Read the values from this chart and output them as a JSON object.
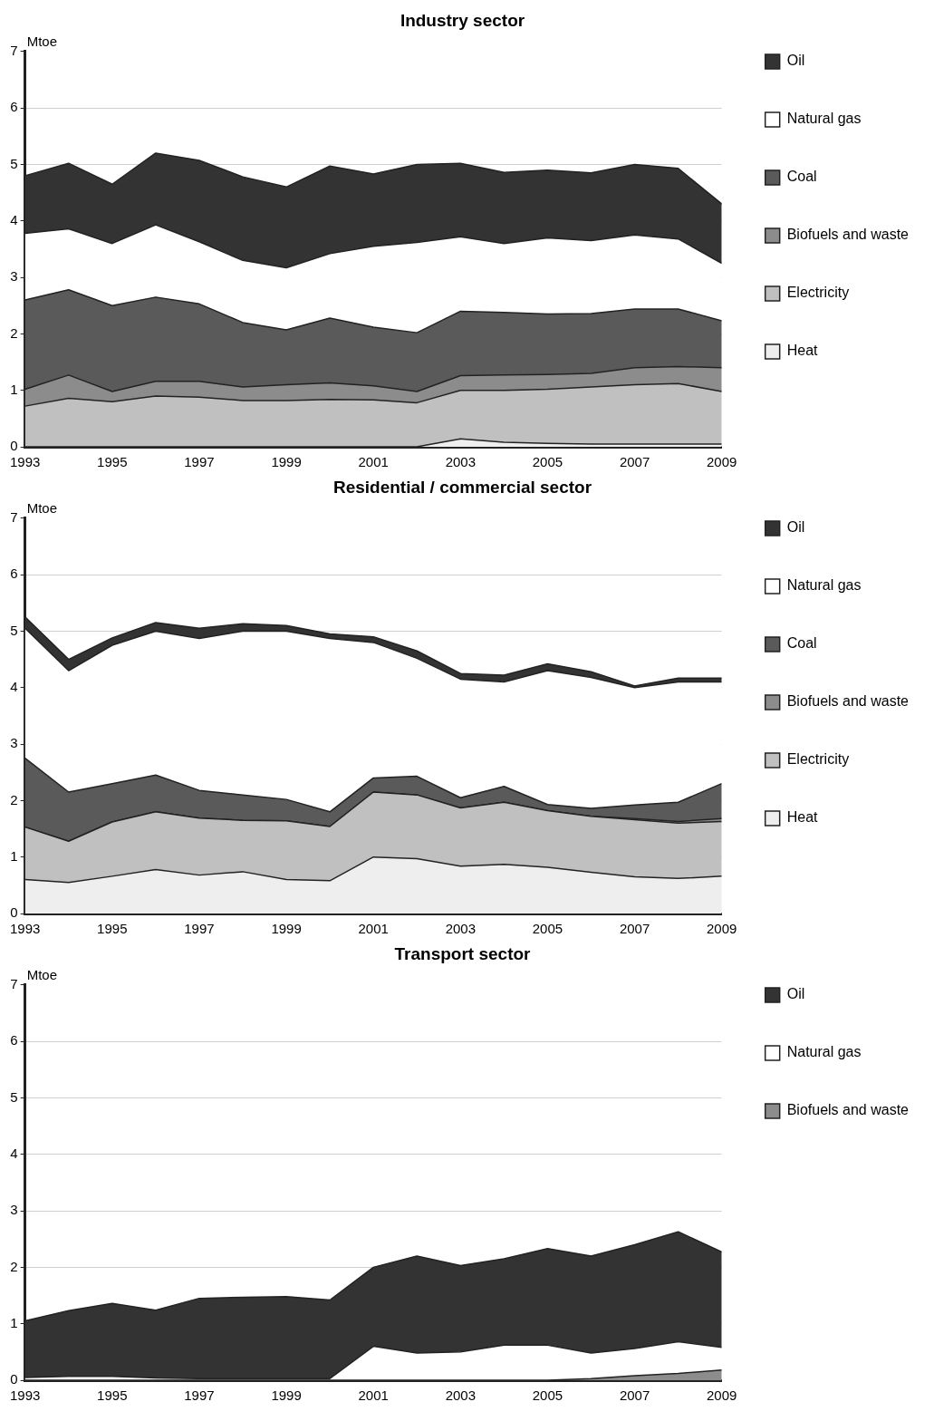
{
  "chart_data": [
    {
      "type": "area",
      "title": "Industry sector",
      "ylabel": "Mtoe",
      "stacked": true,
      "x": [
        1993,
        1994,
        1995,
        1996,
        1997,
        1998,
        1999,
        2000,
        2001,
        2002,
        2003,
        2004,
        2005,
        2006,
        2007,
        2008,
        2009
      ],
      "xlim": [
        1993,
        2009
      ],
      "xticks": [
        1993,
        1995,
        1997,
        1999,
        2001,
        2003,
        2005,
        2007,
        2009
      ],
      "ylim": [
        0,
        7
      ],
      "yticks": [
        0,
        1,
        2,
        3,
        4,
        5,
        6,
        7
      ],
      "grid": "y",
      "legend": "right",
      "series": [
        {
          "name": "Heat",
          "color": "#eeeeee",
          "values": [
            0,
            0,
            0,
            0,
            0,
            0,
            0,
            0,
            0,
            0,
            0.14,
            0.08,
            0.06,
            0.05,
            0.05,
            0.05,
            0.05
          ]
        },
        {
          "name": "Electricity",
          "color": "#c0c0c0",
          "values": [
            0.72,
            0.86,
            0.8,
            0.9,
            0.88,
            0.82,
            0.82,
            0.84,
            0.83,
            0.78,
            0.86,
            0.92,
            0.96,
            1.01,
            1.05,
            1.07,
            0.93
          ]
        },
        {
          "name": "Biofuels and waste",
          "color": "#8c8c8c",
          "values": [
            0.3,
            0.41,
            0.18,
            0.26,
            0.28,
            0.24,
            0.28,
            0.29,
            0.25,
            0.2,
            0.26,
            0.27,
            0.26,
            0.24,
            0.3,
            0.3,
            0.42
          ]
        },
        {
          "name": "Coal",
          "color": "#5a5a5a",
          "values": [
            1.58,
            1.51,
            1.52,
            1.49,
            1.37,
            1.14,
            0.97,
            1.15,
            1.04,
            1.04,
            1.14,
            1.11,
            1.07,
            1.06,
            1.04,
            1.02,
            0.83
          ]
        },
        {
          "name": "Natural gas",
          "color": "#ffffff",
          "values": [
            1.18,
            1.08,
            1.1,
            1.28,
            1.1,
            1.1,
            1.1,
            1.14,
            1.43,
            1.6,
            1.32,
            1.22,
            1.35,
            1.29,
            1.31,
            1.24,
            1.02
          ]
        },
        {
          "name": "Oil",
          "color": "#333333",
          "values": [
            1.02,
            1.16,
            1.05,
            1.27,
            1.44,
            1.48,
            1.43,
            1.55,
            1.28,
            1.38,
            1.3,
            1.26,
            1.2,
            1.2,
            1.25,
            1.25,
            1.05
          ]
        }
      ]
    },
    {
      "type": "area",
      "title": "Residential / commercial sector",
      "ylabel": "Mtoe",
      "stacked": true,
      "x": [
        1993,
        1994,
        1995,
        1996,
        1997,
        1998,
        1999,
        2000,
        2001,
        2002,
        2003,
        2004,
        2005,
        2006,
        2007,
        2008,
        2009
      ],
      "xlim": [
        1993,
        2009
      ],
      "xticks": [
        1993,
        1995,
        1997,
        1999,
        2001,
        2003,
        2005,
        2007,
        2009
      ],
      "ylim": [
        0,
        7
      ],
      "yticks": [
        0,
        1,
        2,
        3,
        4,
        5,
        6,
        7
      ],
      "grid": "y",
      "legend": "right",
      "series": [
        {
          "name": "Heat",
          "color": "#eeeeee",
          "values": [
            0.6,
            0.55,
            0.66,
            0.78,
            0.68,
            0.74,
            0.6,
            0.58,
            1.0,
            0.97,
            0.84,
            0.87,
            0.82,
            0.73,
            0.65,
            0.62,
            0.66
          ]
        },
        {
          "name": "Electricity",
          "color": "#c0c0c0",
          "values": [
            0.93,
            0.73,
            0.96,
            1.02,
            1.01,
            0.91,
            1.04,
            0.96,
            1.15,
            1.13,
            1.03,
            1.1,
            1.0,
            0.99,
            1.01,
            0.98,
            0.97
          ]
        },
        {
          "name": "Biofuels and waste",
          "color": "#8c8c8c",
          "values": [
            0,
            0,
            0,
            0,
            0,
            0,
            0,
            0,
            0,
            0,
            0,
            0,
            0,
            0,
            0.02,
            0.03,
            0.05
          ]
        },
        {
          "name": "Coal",
          "color": "#5a5a5a",
          "values": [
            1.22,
            0.87,
            0.68,
            0.65,
            0.49,
            0.45,
            0.38,
            0.26,
            0.25,
            0.33,
            0.18,
            0.28,
            0.11,
            0.14,
            0.24,
            0.34,
            0.62
          ]
        },
        {
          "name": "Natural gas",
          "color": "#ffffff",
          "values": [
            2.3,
            2.15,
            2.45,
            2.55,
            2.69,
            2.9,
            2.98,
            3.07,
            2.4,
            2.09,
            2.1,
            1.85,
            2.37,
            2.32,
            2.08,
            2.13,
            1.8
          ]
        },
        {
          "name": "Oil",
          "color": "#333333",
          "values": [
            0.2,
            0.2,
            0.13,
            0.15,
            0.18,
            0.13,
            0.1,
            0.08,
            0.1,
            0.13,
            0.1,
            0.12,
            0.12,
            0.1,
            0.03,
            0.07,
            0.07
          ]
        }
      ]
    },
    {
      "type": "area",
      "title": "Transport sector",
      "ylabel": "Mtoe",
      "stacked": true,
      "x": [
        1993,
        1994,
        1995,
        1996,
        1997,
        1998,
        1999,
        2000,
        2001,
        2002,
        2003,
        2004,
        2005,
        2006,
        2007,
        2008,
        2009
      ],
      "xlim": [
        1993,
        2009
      ],
      "xticks": [
        1993,
        1995,
        1997,
        1999,
        2001,
        2003,
        2005,
        2007,
        2009
      ],
      "ylim": [
        0,
        7
      ],
      "yticks": [
        0,
        1,
        2,
        3,
        4,
        5,
        6,
        7
      ],
      "grid": "y",
      "legend": "right",
      "series": [
        {
          "name": "Biofuels and waste",
          "color": "#8c8c8c",
          "values": [
            0,
            0,
            0,
            0,
            0,
            0,
            0,
            0,
            0,
            0,
            0,
            0,
            0,
            0.03,
            0.08,
            0.12,
            0.18
          ]
        },
        {
          "name": "Natural gas",
          "color": "#ffffff",
          "values": [
            0.05,
            0.07,
            0.07,
            0.04,
            0.03,
            0.03,
            0.03,
            0.03,
            0.6,
            0.48,
            0.5,
            0.62,
            0.62,
            0.45,
            0.48,
            0.56,
            0.4
          ]
        },
        {
          "name": "Oil",
          "color": "#333333",
          "values": [
            1.0,
            1.16,
            1.29,
            1.2,
            1.42,
            1.44,
            1.45,
            1.39,
            1.4,
            1.72,
            1.53,
            1.53,
            1.71,
            1.72,
            1.84,
            1.95,
            1.69
          ]
        }
      ]
    }
  ]
}
